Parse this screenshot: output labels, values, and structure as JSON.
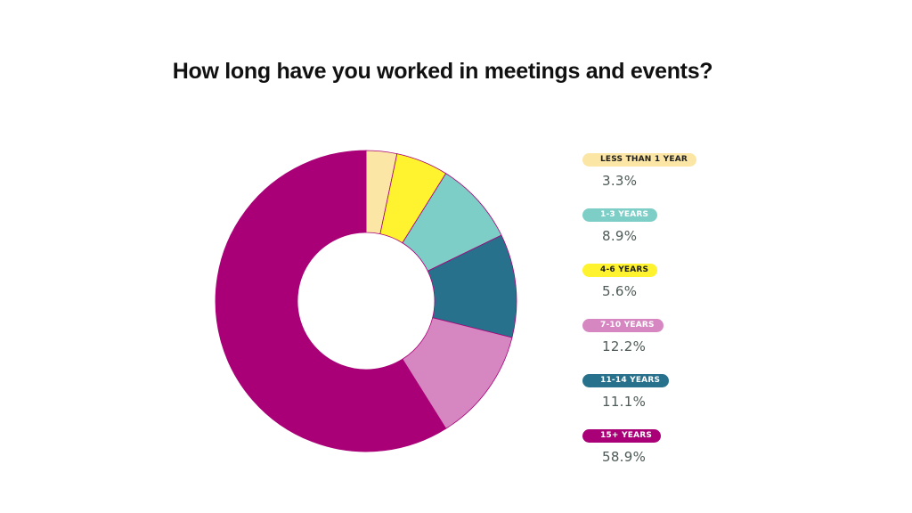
{
  "chart_data": {
    "type": "pie",
    "variant": "donut",
    "title": "How long have you worked in meetings and events?",
    "slices": [
      {
        "label": "LESS THAN 1 YEAR",
        "value": 3.3,
        "display": "3.3%",
        "color": "#fbe6a6",
        "label_color": "#1f1f1f"
      },
      {
        "label": "4-6 YEARS",
        "value": 5.6,
        "display": "5.6%",
        "color": "#fff22e",
        "label_color": "#1f1f1f"
      },
      {
        "label": "1-3 YEARS",
        "value": 8.9,
        "display": "8.9%",
        "color": "#7ecec8",
        "label_color": "#ffffff"
      },
      {
        "label": "11-14 YEARS",
        "value": 11.1,
        "display": "11.1%",
        "color": "#27718c",
        "label_color": "#ffffff"
      },
      {
        "label": "7-10 YEARS",
        "value": 12.2,
        "display": "12.2%",
        "color": "#d687c2",
        "label_color": "#ffffff"
      },
      {
        "label": "15+ YEARS",
        "value": 58.9,
        "display": "58.9%",
        "color": "#a90077",
        "label_color": "#ffffff"
      }
    ],
    "legend": [
      {
        "label": "LESS THAN 1 YEAR",
        "display": "3.3%",
        "color": "#fbe6a6",
        "label_color": "#1f1f1f"
      },
      {
        "label": "1-3 YEARS",
        "display": "8.9%",
        "color": "#7ecec8",
        "label_color": "#ffffff"
      },
      {
        "label": "4-6 YEARS",
        "display": "5.6%",
        "color": "#fff22e",
        "label_color": "#1f1f1f"
      },
      {
        "label": "7-10 YEARS",
        "display": "12.2%",
        "color": "#d687c2",
        "label_color": "#ffffff"
      },
      {
        "label": "11-14 YEARS",
        "display": "11.1%",
        "color": "#27718c",
        "label_color": "#ffffff"
      },
      {
        "label": "15+ YEARS",
        "display": "58.9%",
        "color": "#a90077",
        "label_color": "#ffffff"
      }
    ],
    "legend_position": "right",
    "slice_outline_color": "#a90077"
  }
}
